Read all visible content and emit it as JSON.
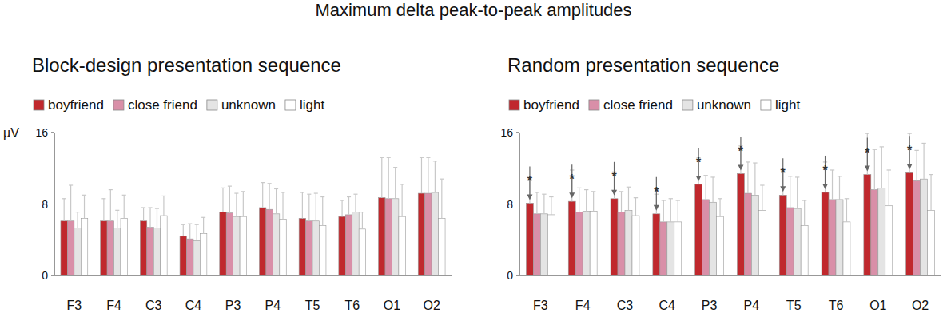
{
  "title": "Maximum delta peak-to-peak amplitudes",
  "chart_data": [
    {
      "type": "bar",
      "title": "Block-design presentation sequence",
      "y_label": "µV",
      "categories": [
        "F3",
        "F4",
        "C3",
        "C4",
        "P3",
        "P4",
        "T5",
        "T6",
        "O1",
        "O2"
      ],
      "ylim": [
        0,
        16
      ],
      "yticks": [
        0,
        8,
        16
      ],
      "grid": false,
      "legend": "top",
      "series": [
        {
          "name": "boyfriend",
          "color": "#c0282d",
          "values": [
            6.1,
            6.1,
            6.1,
            4.4,
            7.1,
            7.6,
            6.4,
            6.6,
            8.7,
            9.2
          ],
          "errors": [
            2.5,
            2.5,
            1.5,
            1.3,
            2.7,
            2.8,
            2.9,
            1.8,
            4.5,
            4.0
          ]
        },
        {
          "name": "close friend",
          "color": "#d98fa8",
          "values": [
            6.1,
            6.1,
            5.4,
            4.1,
            7.0,
            7.4,
            6.1,
            6.8,
            8.6,
            9.2
          ],
          "errors": [
            4.0,
            3.5,
            2.2,
            1.7,
            3.0,
            2.9,
            3.0,
            2.0,
            4.6,
            4.0
          ]
        },
        {
          "name": "unknown",
          "color": "#e4e4e4",
          "values": [
            5.3,
            5.3,
            5.3,
            3.9,
            6.6,
            6.9,
            6.1,
            7.1,
            8.6,
            9.3
          ],
          "errors": [
            1.8,
            2.0,
            2.2,
            1.8,
            2.6,
            2.8,
            3.1,
            2.0,
            3.5,
            3.5
          ]
        },
        {
          "name": "light",
          "color": "#ffffff",
          "values": [
            6.4,
            6.4,
            6.7,
            4.7,
            6.6,
            6.3,
            5.6,
            5.2,
            6.6,
            6.4
          ],
          "errors": [
            2.6,
            2.6,
            2.2,
            1.8,
            2.8,
            3.0,
            3.2,
            1.9,
            3.6,
            4.4
          ]
        }
      ]
    },
    {
      "type": "bar",
      "title": "Random presentation sequence",
      "categories": [
        "F3",
        "F4",
        "C3",
        "C4",
        "P3",
        "P4",
        "T5",
        "T6",
        "O1",
        "O2"
      ],
      "ylim": [
        0,
        16
      ],
      "yticks": [
        0,
        8,
        16
      ],
      "grid": false,
      "legend": "top",
      "annotations": [
        "*",
        "*",
        "*",
        "*",
        "*",
        "*",
        "*",
        "*",
        "*",
        "*"
      ],
      "series": [
        {
          "name": "boyfriend",
          "color": "#c0282d",
          "values": [
            8.1,
            8.3,
            8.6,
            6.9,
            10.2,
            11.4,
            9.0,
            9.3,
            11.3,
            11.5
          ],
          "errors": [
            2.5,
            3.5,
            3.0,
            2.2,
            3.0,
            3.1,
            2.5,
            3.4,
            4.6,
            4.4
          ]
        },
        {
          "name": "close friend",
          "color": "#d98fa8",
          "values": [
            6.9,
            7.1,
            7.1,
            6.0,
            8.5,
            9.2,
            7.6,
            8.5,
            9.6,
            10.6
          ],
          "errors": [
            2.4,
            2.7,
            2.3,
            2.4,
            2.7,
            3.5,
            3.5,
            3.3,
            4.5,
            3.4
          ]
        },
        {
          "name": "unknown",
          "color": "#e4e4e4",
          "values": [
            6.9,
            7.2,
            7.3,
            6.0,
            8.2,
            9.0,
            7.5,
            8.5,
            9.8,
            10.8
          ],
          "errors": [
            2.2,
            2.4,
            2.6,
            2.6,
            2.8,
            3.6,
            3.5,
            2.6,
            4.6,
            4.0
          ]
        },
        {
          "name": "light",
          "color": "#ffffff",
          "values": [
            6.8,
            7.2,
            6.7,
            6.0,
            6.6,
            7.3,
            5.6,
            6.0,
            7.8,
            7.3
          ],
          "errors": [
            2.0,
            2.2,
            2.0,
            2.4,
            2.0,
            2.8,
            2.8,
            2.6,
            4.0,
            4.0
          ]
        }
      ]
    }
  ]
}
